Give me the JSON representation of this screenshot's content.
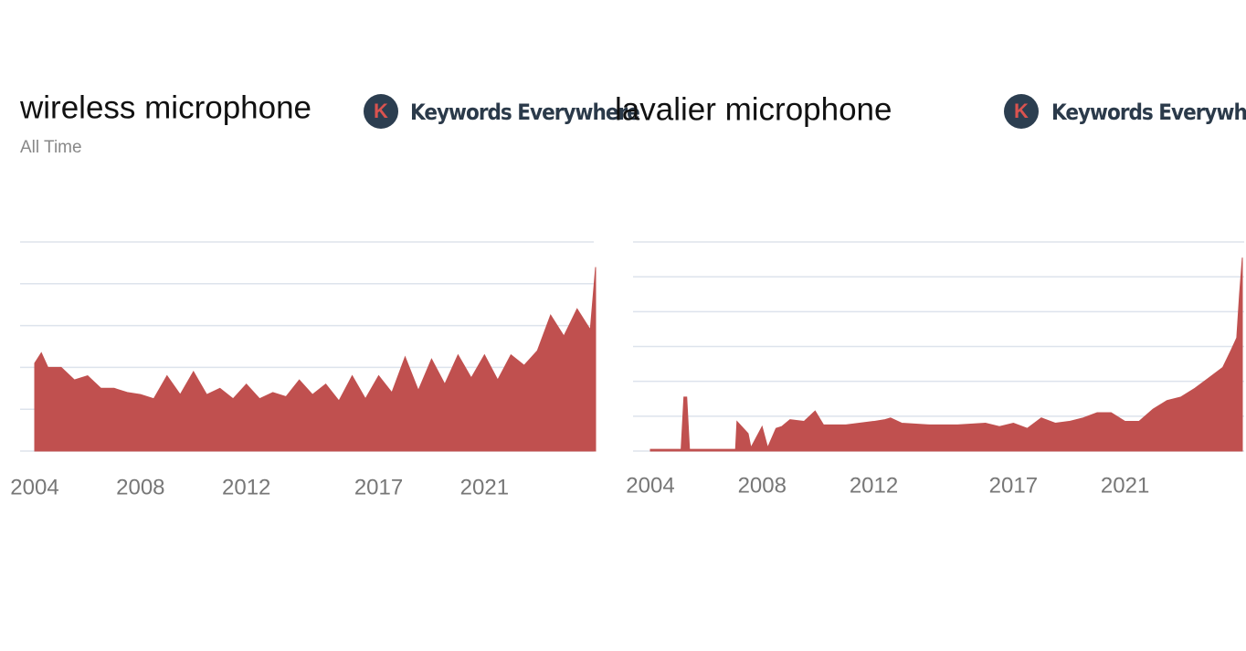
{
  "chart_data": [
    {
      "type": "area",
      "title": "wireless microphone",
      "subtitle": "All Time",
      "logo": "K",
      "brand": "Keywords Everywhere",
      "color": "#c0504f",
      "grid": true,
      "xlim": [
        2004,
        2025.2
      ],
      "ylim": [
        0,
        100
      ],
      "xticks": [
        2004,
        2008,
        2012,
        2017,
        2021
      ],
      "yticks": [
        20,
        40,
        60,
        80,
        100
      ],
      "series": [
        {
          "name": "wireless microphone",
          "color": "#c0504f",
          "x": [
            2004,
            2004.25,
            2004.5,
            2005,
            2005.5,
            2006,
            2006.5,
            2007,
            2007.5,
            2008,
            2008.5,
            2009,
            2009.5,
            2010,
            2010.5,
            2011,
            2011.5,
            2012,
            2012.5,
            2013,
            2013.5,
            2014,
            2014.5,
            2015,
            2015.5,
            2016,
            2016.5,
            2017,
            2017.5,
            2018,
            2018.5,
            2019,
            2019.5,
            2020,
            2020.5,
            2021,
            2021.5,
            2022,
            2022.5,
            2023,
            2023.5,
            2024,
            2024.5,
            2025,
            2025.2
          ],
          "values": [
            42,
            47,
            40,
            40,
            34,
            36,
            30,
            30,
            28,
            27,
            25,
            36,
            27,
            38,
            27,
            30,
            25,
            32,
            25,
            28,
            26,
            34,
            27,
            32,
            24,
            36,
            25,
            36,
            28,
            45,
            29,
            44,
            32,
            46,
            35,
            46,
            34,
            46,
            41,
            48,
            65,
            55,
            68,
            58,
            88
          ]
        }
      ]
    },
    {
      "type": "area",
      "title": "lavalier microphone",
      "logo": "K",
      "brand": "Keywords Everywhere",
      "color": "#c0504f",
      "grid": true,
      "xlim": [
        2004,
        2025.2
      ],
      "ylim": [
        0,
        120
      ],
      "xticks": [
        2004,
        2008,
        2012,
        2017,
        2021
      ],
      "yticks": [
        20,
        40,
        60,
        80,
        100,
        120
      ],
      "series": [
        {
          "name": "lavalier microphone",
          "color": "#c0504f",
          "x": [
            2004,
            2005.1,
            2005.2,
            2005.3,
            2005.4,
            2007.05,
            2007.1,
            2007.5,
            2007.6,
            2008,
            2008.2,
            2008.5,
            2008.7,
            2009,
            2009.5,
            2009.9,
            2010.2,
            2011,
            2012,
            2012.4,
            2012.6,
            2013,
            2014,
            2015,
            2016,
            2016.5,
            2017,
            2017.5,
            2018,
            2018.5,
            2019,
            2019.5,
            2020,
            2020.5,
            2021,
            2021.5,
            2022,
            2022.5,
            2023,
            2023.5,
            2024,
            2024.5,
            2024.8,
            2025,
            2025.1,
            2025.2
          ],
          "values": [
            1,
            1,
            31,
            31,
            1,
            1,
            17,
            10,
            2,
            14,
            2,
            13,
            14,
            18,
            17,
            23,
            15,
            15,
            17,
            18,
            19,
            16,
            15,
            15,
            16,
            14,
            16,
            13,
            19,
            16,
            17,
            19,
            22,
            22,
            17,
            17,
            24,
            29,
            31,
            36,
            42,
            48,
            58,
            65,
            90,
            111
          ]
        }
      ]
    }
  ]
}
